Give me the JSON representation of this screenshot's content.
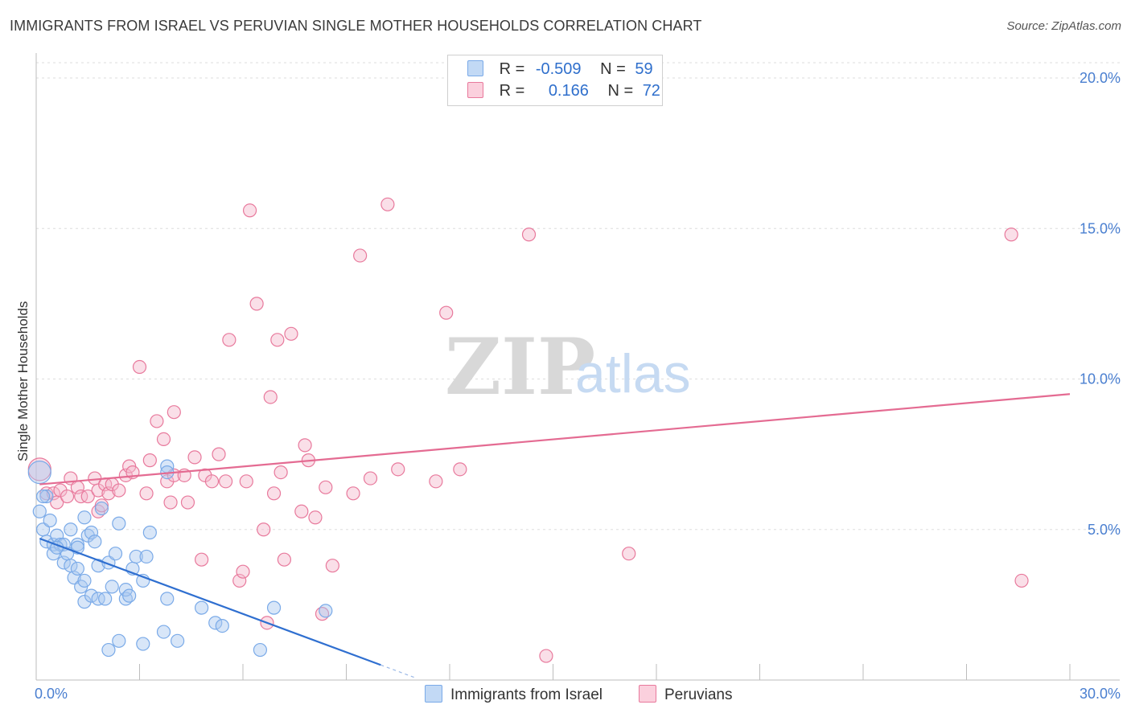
{
  "header": {
    "title": "IMMIGRANTS FROM ISRAEL VS PERUVIAN SINGLE MOTHER HOUSEHOLDS CORRELATION CHART",
    "source": "Source: ZipAtlas.com"
  },
  "legend": {
    "rows": [
      {
        "r_label": "R =",
        "r_value": "-0.509",
        "n_label": "N =",
        "n_value": "59",
        "color": "#a9c8f0"
      },
      {
        "r_label": "R =",
        "r_value": "0.166",
        "n_label": "N =",
        "n_value": "72",
        "color": "#f5b8cb"
      }
    ]
  },
  "bottom_legend": {
    "israel": "Immigrants from Israel",
    "peru": "Peruvians"
  },
  "watermark": {
    "zip": "ZIP",
    "atlas": "atlas"
  },
  "chart_data": {
    "type": "scatter",
    "title": "IMMIGRANTS FROM ISRAEL VS PERUVIAN SINGLE MOTHER HOUSEHOLDS CORRELATION CHART",
    "xlabel": "",
    "ylabel": "Single Mother Households",
    "xlim": [
      0,
      30
    ],
    "ylim": [
      0,
      20.5
    ],
    "y_ticks": [
      "5.0%",
      "10.0%",
      "15.0%",
      "20.0%"
    ],
    "y_tick_values": [
      5,
      10,
      15,
      20
    ],
    "x_tick_labels": [
      "0.0%",
      "30.0%"
    ],
    "grid": "horizontal dashed",
    "legend_position": "top-center",
    "series": [
      {
        "name": "Immigrants from Israel",
        "color": "#7aaae8",
        "fill": "#a9c8f0",
        "trend": {
          "x0": 0.1,
          "y0": 4.7,
          "x1": 10.0,
          "y1": 0.5
        },
        "points": [
          [
            0.1,
            6.9
          ],
          [
            0.1,
            5.6
          ],
          [
            0.2,
            5.0
          ],
          [
            0.3,
            6.1
          ],
          [
            0.3,
            4.6
          ],
          [
            0.4,
            5.3
          ],
          [
            0.5,
            4.5
          ],
          [
            0.5,
            4.2
          ],
          [
            0.6,
            4.8
          ],
          [
            0.7,
            4.5
          ],
          [
            0.8,
            4.5
          ],
          [
            0.8,
            3.9
          ],
          [
            0.9,
            4.2
          ],
          [
            1.0,
            5.0
          ],
          [
            1.0,
            3.8
          ],
          [
            1.1,
            3.4
          ],
          [
            1.2,
            3.7
          ],
          [
            1.2,
            4.5
          ],
          [
            1.3,
            3.1
          ],
          [
            1.4,
            3.3
          ],
          [
            1.4,
            2.6
          ],
          [
            1.4,
            5.4
          ],
          [
            1.5,
            4.8
          ],
          [
            1.6,
            2.8
          ],
          [
            1.6,
            4.9
          ],
          [
            1.7,
            4.6
          ],
          [
            1.8,
            2.7
          ],
          [
            1.8,
            3.8
          ],
          [
            1.9,
            5.7
          ],
          [
            2.0,
            2.7
          ],
          [
            2.1,
            1.0
          ],
          [
            2.1,
            3.9
          ],
          [
            2.2,
            3.1
          ],
          [
            2.3,
            4.2
          ],
          [
            2.4,
            1.3
          ],
          [
            2.4,
            5.2
          ],
          [
            2.6,
            2.7
          ],
          [
            2.6,
            3.0
          ],
          [
            2.7,
            2.8
          ],
          [
            2.8,
            3.7
          ],
          [
            2.9,
            4.1
          ],
          [
            3.1,
            3.3
          ],
          [
            3.1,
            1.2
          ],
          [
            3.2,
            4.1
          ],
          [
            3.3,
            4.9
          ],
          [
            3.7,
            1.6
          ],
          [
            3.8,
            7.1
          ],
          [
            3.8,
            6.9
          ],
          [
            3.8,
            2.7
          ],
          [
            4.1,
            1.3
          ],
          [
            4.8,
            2.4
          ],
          [
            5.2,
            1.9
          ],
          [
            5.4,
            1.8
          ],
          [
            6.5,
            1.0
          ],
          [
            6.9,
            2.4
          ],
          [
            8.4,
            2.3
          ],
          [
            0.2,
            6.1
          ],
          [
            0.6,
            4.4
          ],
          [
            1.2,
            4.4
          ]
        ]
      },
      {
        "name": "Peruvians",
        "color": "#e8799c",
        "fill": "#f5b8cb",
        "trend": {
          "x0": 0.1,
          "y0": 6.5,
          "x1": 30.0,
          "y1": 9.5
        },
        "points": [
          [
            0.1,
            7.0
          ],
          [
            0.3,
            6.2
          ],
          [
            0.5,
            6.2
          ],
          [
            0.6,
            5.9
          ],
          [
            0.7,
            6.3
          ],
          [
            0.9,
            6.1
          ],
          [
            1.0,
            6.7
          ],
          [
            1.2,
            6.4
          ],
          [
            1.3,
            6.1
          ],
          [
            1.5,
            6.1
          ],
          [
            1.7,
            6.7
          ],
          [
            1.8,
            6.3
          ],
          [
            1.8,
            5.6
          ],
          [
            1.9,
            5.8
          ],
          [
            2.0,
            6.5
          ],
          [
            2.1,
            6.2
          ],
          [
            2.2,
            6.5
          ],
          [
            2.4,
            6.3
          ],
          [
            2.6,
            6.8
          ],
          [
            2.7,
            7.1
          ],
          [
            2.8,
            6.9
          ],
          [
            3.0,
            10.4
          ],
          [
            3.2,
            6.2
          ],
          [
            3.3,
            7.3
          ],
          [
            3.5,
            8.6
          ],
          [
            3.7,
            8.0
          ],
          [
            3.8,
            6.6
          ],
          [
            3.9,
            5.9
          ],
          [
            4.0,
            6.8
          ],
          [
            4.0,
            8.9
          ],
          [
            4.3,
            6.8
          ],
          [
            4.4,
            5.9
          ],
          [
            4.6,
            7.4
          ],
          [
            4.8,
            4.0
          ],
          [
            4.9,
            6.8
          ],
          [
            5.1,
            6.6
          ],
          [
            5.3,
            7.5
          ],
          [
            5.5,
            6.6
          ],
          [
            5.6,
            11.3
          ],
          [
            5.9,
            3.3
          ],
          [
            6.0,
            3.6
          ],
          [
            6.1,
            6.6
          ],
          [
            6.2,
            15.6
          ],
          [
            6.4,
            12.5
          ],
          [
            6.6,
            5.0
          ],
          [
            6.7,
            1.9
          ],
          [
            6.8,
            9.4
          ],
          [
            6.9,
            6.2
          ],
          [
            7.0,
            11.3
          ],
          [
            7.1,
            6.9
          ],
          [
            7.2,
            4.0
          ],
          [
            7.4,
            11.5
          ],
          [
            7.7,
            5.6
          ],
          [
            7.8,
            7.8
          ],
          [
            7.9,
            7.3
          ],
          [
            8.1,
            5.4
          ],
          [
            8.3,
            2.2
          ],
          [
            8.4,
            6.4
          ],
          [
            8.6,
            3.8
          ],
          [
            9.2,
            6.2
          ],
          [
            9.4,
            14.1
          ],
          [
            9.7,
            6.7
          ],
          [
            10.2,
            15.8
          ],
          [
            10.5,
            7.0
          ],
          [
            11.6,
            6.6
          ],
          [
            11.9,
            12.2
          ],
          [
            12.3,
            7.0
          ],
          [
            14.3,
            14.8
          ],
          [
            14.8,
            0.8
          ],
          [
            17.2,
            4.2
          ],
          [
            28.3,
            14.8
          ],
          [
            28.6,
            3.3
          ]
        ]
      }
    ]
  }
}
